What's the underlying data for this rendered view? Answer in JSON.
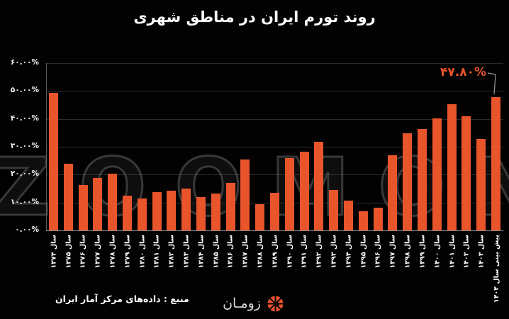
{
  "title": "روند تورم ایران در مناطق شهری",
  "watermark": "ZOOMON",
  "annotation": {
    "label": "۴۷.۸۰%",
    "points_to_category": "پیش بینی سال ۱۴۰۴"
  },
  "footer": {
    "source": "منبع : داده‌های مرکز آمار ایران",
    "brand": "زومـان",
    "brand_icon": "sun-swirl-icon"
  },
  "colors": {
    "background": "#020202",
    "bar": "#E8552B",
    "annotation": "#E8552B",
    "title_text": "#ffffff",
    "axis_line": "#8a8a8a",
    "gridline": "#2b2b2b"
  },
  "chart_data": {
    "type": "bar",
    "title": "روند تورم ایران در مناطق شهری",
    "xlabel": "",
    "ylabel": "",
    "ylim": [
      0,
      60
    ],
    "grid": true,
    "unit": "%",
    "categories": [
      "سال ۱۳۷۴",
      "سال ۱۳۷۵",
      "سال ۱۳۷۶",
      "سال ۱۳۷۷",
      "سال ۱۳۷۸",
      "سال ۱۳۷۹",
      "سال ۱۳۸۰",
      "سال ۱۳۸۱",
      "سال ۱۳۸۲",
      "سال ۱۳۸۳",
      "سال ۱۳۸۴",
      "سال ۱۳۸۵",
      "سال ۱۳۸۶",
      "سال ۱۳۸۷",
      "سال ۱۳۸۸",
      "سال ۱۳۸۹",
      "سال ۱۳۹۰",
      "سال ۱۳۹۱",
      "سال ۱۳۹۲",
      "سال ۱۳۹۳",
      "سال ۱۳۹۴",
      "سال ۱۳۹۵",
      "سال ۱۳۹۶",
      "سال ۱۳۹۷",
      "سال ۱۳۹۸",
      "سال ۱۳۹۹",
      "سال ۱۴۰۰",
      "سال ۱۴۰۱",
      "سال ۱۴۰۲",
      "سال ۱۴۰۳",
      "پیش بینی سال ۱۴۰۴"
    ],
    "values": [
      49.4,
      23.8,
      16.2,
      18.7,
      20.3,
      12.4,
      11.5,
      13.7,
      14.3,
      15.0,
      11.9,
      13.3,
      17.0,
      25.5,
      9.4,
      13.6,
      25.9,
      28.2,
      31.9,
      14.5,
      10.8,
      6.9,
      8.1,
      26.9,
      34.8,
      36.4,
      40.1,
      45.3,
      40.9,
      32.7,
      47.8
    ],
    "y_ticks": [
      {
        "value": 0,
        "label": "۰.۰۰%"
      },
      {
        "value": 10,
        "label": "۱۰.۰۰%"
      },
      {
        "value": 20,
        "label": "۲۰.۰۰%"
      },
      {
        "value": 30,
        "label": "۳۰.۰۰%"
      },
      {
        "value": 40,
        "label": "۴۰.۰۰%"
      },
      {
        "value": 50,
        "label": "۵۰.۰۰%"
      },
      {
        "value": 60,
        "label": "۶۰.۰۰%"
      }
    ]
  }
}
